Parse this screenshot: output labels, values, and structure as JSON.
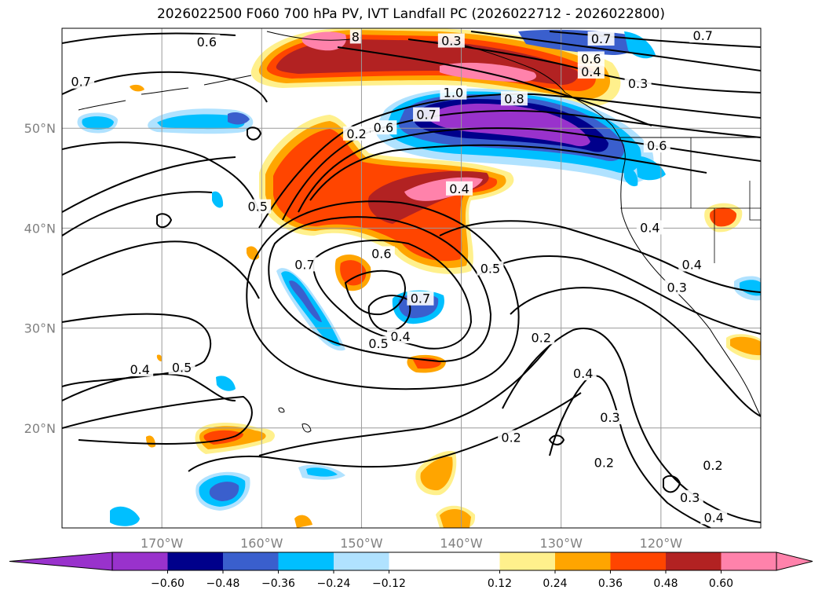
{
  "title": "2026022500 F060 700 hPa PV, IVT Landfall PC (2026022712 - 2026022800)",
  "map": {
    "lon_range": [
      -180,
      -110
    ],
    "lat_range": [
      10,
      60
    ],
    "lon_ticks": [
      {
        "value": -170,
        "label": "170°W"
      },
      {
        "value": -160,
        "label": "160°W"
      },
      {
        "value": -150,
        "label": "150°W"
      },
      {
        "value": -140,
        "label": "140°W"
      },
      {
        "value": -130,
        "label": "130°W"
      },
      {
        "value": -120,
        "label": "120°W"
      }
    ],
    "lat_ticks": [
      {
        "value": 50,
        "label": "50°N"
      },
      {
        "value": 40,
        "label": "40°N"
      },
      {
        "value": 30,
        "label": "30°N"
      },
      {
        "value": 20,
        "label": "20°N"
      }
    ],
    "gridlines": true,
    "contour_labels": [
      {
        "lon": -165.5,
        "lat": 58.6,
        "text": "0.6"
      },
      {
        "lon": -178.1,
        "lat": 54.6,
        "text": "0.7"
      },
      {
        "lon": -150.6,
        "lat": 59.1,
        "text": "8"
      },
      {
        "lon": -141.0,
        "lat": 58.7,
        "text": "0.3"
      },
      {
        "lon": -126.0,
        "lat": 58.9,
        "text": "0.7"
      },
      {
        "lon": -115.8,
        "lat": 59.2,
        "text": "0.7"
      },
      {
        "lon": -127.0,
        "lat": 56.9,
        "text": "0.6"
      },
      {
        "lon": -127.0,
        "lat": 55.6,
        "text": "0.4"
      },
      {
        "lon": -122.3,
        "lat": 54.4,
        "text": "0.3"
      },
      {
        "lon": -140.8,
        "lat": 53.5,
        "text": "1.0"
      },
      {
        "lon": -147.8,
        "lat": 50.0,
        "text": "0.6"
      },
      {
        "lon": -143.5,
        "lat": 51.3,
        "text": "0.7"
      },
      {
        "lon": -134.7,
        "lat": 52.9,
        "text": "0.8"
      },
      {
        "lon": -150.5,
        "lat": 49.4,
        "text": "0.2"
      },
      {
        "lon": -120.4,
        "lat": 48.2,
        "text": "0.6"
      },
      {
        "lon": -140.2,
        "lat": 43.9,
        "text": "0.4"
      },
      {
        "lon": -160.4,
        "lat": 42.1,
        "text": "0.5"
      },
      {
        "lon": -121.1,
        "lat": 40.0,
        "text": "0.4"
      },
      {
        "lon": -148.0,
        "lat": 37.4,
        "text": "0.6"
      },
      {
        "lon": -155.7,
        "lat": 36.3,
        "text": "0.7"
      },
      {
        "lon": -137.1,
        "lat": 35.9,
        "text": "0.5"
      },
      {
        "lon": -144.1,
        "lat": 32.9,
        "text": "0.7"
      },
      {
        "lon": -116.9,
        "lat": 36.3,
        "text": "0.4"
      },
      {
        "lon": -118.4,
        "lat": 34.0,
        "text": "0.3"
      },
      {
        "lon": -132.0,
        "lat": 29.0,
        "text": "0.2"
      },
      {
        "lon": -146.1,
        "lat": 29.1,
        "text": "0.4"
      },
      {
        "lon": -148.3,
        "lat": 28.4,
        "text": "0.5"
      },
      {
        "lon": -172.2,
        "lat": 25.8,
        "text": "0.4"
      },
      {
        "lon": -168.0,
        "lat": 26.0,
        "text": "0.5"
      },
      {
        "lon": -127.8,
        "lat": 25.4,
        "text": "0.4"
      },
      {
        "lon": -125.1,
        "lat": 21.0,
        "text": "0.3"
      },
      {
        "lon": -135.0,
        "lat": 19.0,
        "text": "0.2"
      },
      {
        "lon": -125.7,
        "lat": 16.5,
        "text": "0.2"
      },
      {
        "lon": -114.8,
        "lat": 16.2,
        "text": "0.2"
      },
      {
        "lon": -117.1,
        "lat": 13.0,
        "text": "0.3"
      },
      {
        "lon": -114.7,
        "lat": 11.0,
        "text": "0.4"
      }
    ]
  },
  "colorbar": {
    "levels": [
      -0.72,
      -0.6,
      -0.48,
      -0.36,
      -0.24,
      -0.12,
      0.12,
      0.24,
      0.36,
      0.48,
      0.6,
      0.72
    ],
    "colors": [
      "#9932cc",
      "#00008b",
      "#3a5fcd",
      "#00bfff",
      "#b0e2ff",
      "#ffffff",
      "#fff08c",
      "#ffa500",
      "#ff4500",
      "#b22222",
      "#ff82ab"
    ],
    "extend_colors": {
      "low": "#9932cc",
      "high": "#ff82ab"
    },
    "tick_labels": [
      "−0.60",
      "−0.48",
      "−0.36",
      "−0.24",
      "−0.12",
      "0.12",
      "0.24",
      "0.36",
      "0.48",
      "0.60"
    ]
  }
}
